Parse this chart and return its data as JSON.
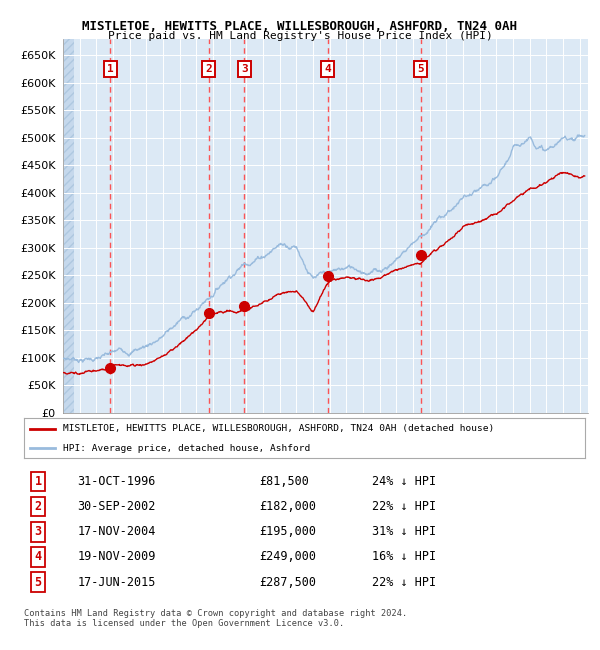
{
  "title1": "MISTLETOE, HEWITTS PLACE, WILLESBOROUGH, ASHFORD, TN24 0AH",
  "title2": "Price paid vs. HM Land Registry's House Price Index (HPI)",
  "ylim": [
    0,
    680000
  ],
  "yticks": [
    0,
    50000,
    100000,
    150000,
    200000,
    250000,
    300000,
    350000,
    400000,
    450000,
    500000,
    550000,
    600000,
    650000
  ],
  "xlim_start": 1994.0,
  "xlim_end": 2025.5,
  "bg_color": "#dce9f5",
  "legend_line1": "MISTLETOE, HEWITTS PLACE, WILLESBOROUGH, ASHFORD, TN24 0AH (detached house)",
  "legend_line2": "HPI: Average price, detached house, Ashford",
  "sale_dates_x": [
    1996.833,
    2002.75,
    2004.877,
    2009.877,
    2015.458
  ],
  "sale_prices_y": [
    81500,
    182000,
    195000,
    249000,
    287500
  ],
  "sale_labels": [
    "1",
    "2",
    "3",
    "4",
    "5"
  ],
  "table_data": [
    [
      "1",
      "31-OCT-1996",
      "£81,500",
      "24% ↓ HPI"
    ],
    [
      "2",
      "30-SEP-2002",
      "£182,000",
      "22% ↓ HPI"
    ],
    [
      "3",
      "17-NOV-2004",
      "£195,000",
      "31% ↓ HPI"
    ],
    [
      "4",
      "19-NOV-2009",
      "£249,000",
      "16% ↓ HPI"
    ],
    [
      "5",
      "17-JUN-2015",
      "£287,500",
      "22% ↓ HPI"
    ]
  ],
  "footer": "Contains HM Land Registry data © Crown copyright and database right 2024.\nThis data is licensed under the Open Government Licence v3.0.",
  "red_color": "#cc0000",
  "blue_color": "#99bbdd",
  "vline_color": "#ff4444",
  "hpi_key_x": [
    1994,
    1995,
    1996,
    1997,
    1998,
    1999,
    2000,
    2001,
    2002,
    2003,
    2004,
    2005,
    2006,
    2007,
    2008,
    2009,
    2010,
    2011,
    2012,
    2013,
    2014,
    2015,
    2016,
    2017,
    2018,
    2019,
    2020,
    2021,
    2022,
    2023,
    2024,
    2025
  ],
  "hpi_key_y": [
    97000,
    100000,
    104000,
    108000,
    115000,
    128000,
    150000,
    175000,
    195000,
    230000,
    270000,
    300000,
    320000,
    345000,
    350000,
    295000,
    295000,
    300000,
    300000,
    305000,
    330000,
    365000,
    395000,
    420000,
    450000,
    455000,
    460000,
    510000,
    540000,
    520000,
    535000,
    548000
  ],
  "prop_key_x": [
    1994,
    1995,
    1996,
    1996.833,
    1997,
    1998,
    1999,
    2000,
    2001,
    2002,
    2002.75,
    2003,
    2004,
    2004.877,
    2005,
    2006,
    2007,
    2008,
    2009,
    2009.877,
    2010,
    2011,
    2012,
    2013,
    2014,
    2015,
    2015.458,
    2016,
    2017,
    2018,
    2019,
    2020,
    2021,
    2022,
    2023,
    2024,
    2025
  ],
  "prop_key_y": [
    73000,
    76000,
    79000,
    81500,
    84000,
    88000,
    95000,
    108000,
    130000,
    155000,
    182000,
    188000,
    192000,
    195000,
    198000,
    210000,
    225000,
    235000,
    195000,
    249000,
    255000,
    258000,
    255000,
    260000,
    280000,
    284000,
    287500,
    305000,
    330000,
    360000,
    370000,
    380000,
    400000,
    420000,
    430000,
    445000,
    440000
  ]
}
